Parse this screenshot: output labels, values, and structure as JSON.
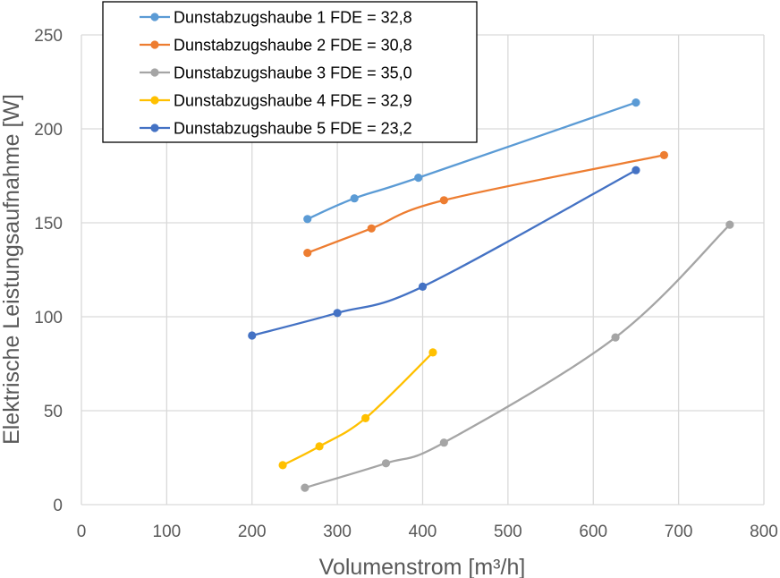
{
  "chart_data": {
    "type": "line",
    "title": "",
    "xlabel": "Volumenstrom [m³/h]",
    "ylabel": "Elektrische Leistungsaufnahme [W]",
    "xlim": [
      0,
      800
    ],
    "ylim": [
      0,
      250
    ],
    "xticks": [
      0,
      100,
      200,
      300,
      400,
      500,
      600,
      700,
      800
    ],
    "yticks": [
      0,
      50,
      100,
      150,
      200,
      250
    ],
    "xtick_labels": [
      "0",
      "100",
      "200",
      "300",
      "400",
      "500",
      "600",
      "700",
      "800"
    ],
    "ytick_labels": [
      "0",
      "50",
      "100",
      "150",
      "200",
      "250"
    ],
    "grid": true,
    "legend_position": "top-left",
    "series": [
      {
        "name": "Dunstabzugshaube 1 FDE = 32,8",
        "color": "#5b9bd5",
        "x": [
          265,
          320,
          395,
          650
        ],
        "y": [
          152,
          163,
          174,
          214
        ]
      },
      {
        "name": "Dunstabzugshaube 2 FDE = 30,8",
        "color": "#ed7d31",
        "x": [
          265,
          340,
          425,
          683
        ],
        "y": [
          134,
          147,
          162,
          186
        ]
      },
      {
        "name": "Dunstabzugshaube 3 FDE = 35,0",
        "color": "#a5a5a5",
        "x": [
          262,
          357,
          425,
          626,
          760
        ],
        "y": [
          9,
          22,
          33,
          89,
          149
        ]
      },
      {
        "name": "Dunstabzugshaube 4 FDE = 32,9",
        "color": "#ffc000",
        "x": [
          236,
          279,
          333,
          412
        ],
        "y": [
          21,
          31,
          46,
          81
        ]
      },
      {
        "name": "Dunstabzugshaube 5 FDE = 23,2",
        "color": "#4472c4",
        "x": [
          200,
          300,
          400,
          650
        ],
        "y": [
          90,
          102,
          116,
          178
        ]
      }
    ]
  }
}
